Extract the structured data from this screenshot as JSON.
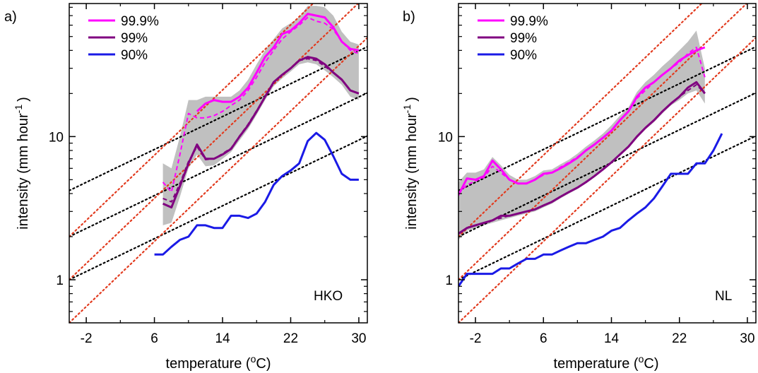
{
  "chart_data": [
    {
      "type": "line",
      "panel_label": "a)",
      "station": "HKO",
      "xlabel": "temperature (",
      "xlabel_sup": "o",
      "xlabel_end": "C)",
      "ylabel": "intensity (mm hour",
      "ylabel_sup": "-1",
      "ylabel_end": ")",
      "xlim": [
        -4,
        31
      ],
      "ylim": [
        0.5,
        85
      ],
      "y_scale": "log",
      "xticks": [
        -2,
        6,
        14,
        22,
        30
      ],
      "xtick_labels": [
        "-2",
        "6",
        "14",
        "22",
        "30"
      ],
      "yticks": [
        1,
        10
      ],
      "ytick_labels": [
        "1",
        "10"
      ],
      "legend": [
        "99.9%",
        "99%",
        "90%"
      ],
      "legend_position": "top-left",
      "series": [
        {
          "name": "99.9%",
          "color": "#ff00ff",
          "x": [
            11,
            12,
            13,
            14,
            15,
            16,
            17,
            18,
            19,
            20,
            21,
            22,
            23,
            24,
            25,
            26,
            27,
            28,
            29,
            30
          ],
          "y": [
            15,
            17,
            18,
            17.5,
            17.5,
            19,
            22,
            28,
            36,
            42,
            52,
            55,
            62,
            72,
            70,
            68,
            58,
            46,
            41,
            40
          ]
        },
        {
          "name": "99% ",
          "color": "#800080",
          "x": [
            7,
            8,
            9,
            10,
            11,
            12,
            13,
            14,
            15,
            16,
            17,
            18,
            19,
            20,
            21,
            22,
            23,
            24,
            25,
            26,
            27,
            28,
            29,
            30
          ],
          "y": [
            3.4,
            3.2,
            4.5,
            6.5,
            8.8,
            7,
            7,
            7.5,
            8.2,
            10,
            12,
            15,
            19,
            24,
            27,
            30,
            34,
            36,
            35,
            32,
            28,
            25,
            21,
            20
          ]
        },
        {
          "name": "90% ",
          "color": "#1a1ae6",
          "x": [
            6,
            7,
            8,
            9,
            10,
            11,
            12,
            13,
            14,
            15,
            16,
            17,
            18,
            19,
            20,
            21,
            22,
            23,
            24,
            25,
            26,
            27,
            28,
            29,
            30
          ],
          "y": [
            1.5,
            1.5,
            1.7,
            1.9,
            2.0,
            2.4,
            2.4,
            2.3,
            2.3,
            2.8,
            2.8,
            2.7,
            2.9,
            3.5,
            4.6,
            5.3,
            5.8,
            6.5,
            9.3,
            10.6,
            9.5,
            7.3,
            5.5,
            5.0,
            5.0
          ]
        },
        {
          "name": "99.9% dashed",
          "color": "#ff00ff",
          "x": [
            7,
            8,
            9,
            10,
            11,
            12,
            13,
            14,
            15,
            16,
            17,
            18,
            19,
            20,
            21,
            22,
            23,
            24,
            25,
            26,
            27,
            28,
            29,
            30
          ],
          "y": [
            4.8,
            4.1,
            7.5,
            14.5,
            13.5,
            13.5,
            14,
            15,
            16.5,
            18,
            21,
            26,
            33,
            40,
            48,
            54,
            60,
            68,
            64,
            62,
            56,
            46,
            40,
            38
          ]
        },
        {
          "name": "99% dashed",
          "color": "#800080",
          "x": [
            7,
            8,
            9,
            10,
            11,
            12,
            13,
            14,
            15,
            16,
            17,
            18,
            19,
            20,
            21,
            22,
            23,
            24,
            25,
            26,
            27,
            28,
            29,
            30
          ],
          "y": [
            3.7,
            3.5,
            4.7,
            6.7,
            8.5,
            6.9,
            7.0,
            7.6,
            8.3,
            10.1,
            12.2,
            15.2,
            19,
            24,
            27,
            30,
            34,
            35,
            34,
            31,
            28,
            25,
            21,
            20
          ]
        }
      ],
      "shade_upper": {
        "x": [
          7,
          8,
          9,
          10,
          11,
          12,
          13,
          14,
          15,
          16,
          17,
          18,
          19,
          20,
          21,
          22,
          23,
          24,
          25,
          26,
          27,
          28,
          29,
          30
        ],
        "y": [
          6.5,
          6,
          10,
          18,
          18,
          19,
          19,
          19,
          19,
          21,
          25,
          32,
          40,
          48,
          57,
          62,
          68,
          82,
          82,
          80,
          70,
          54,
          46,
          44
        ]
      },
      "shade_lower": {
        "x": [
          7,
          8,
          9,
          10,
          11,
          12,
          13,
          14,
          15,
          16,
          17,
          18,
          19,
          20,
          21,
          22,
          23,
          24,
          25,
          26,
          27,
          28,
          29,
          30
        ],
        "y": [
          2.4,
          2.5,
          3.8,
          6,
          7.5,
          6.2,
          6.3,
          7,
          7.8,
          9.4,
          11.3,
          14.2,
          18,
          22.5,
          25.5,
          28.5,
          32,
          33,
          32,
          29,
          26,
          23,
          19,
          18
        ]
      },
      "ref_lines": [
        {
          "kind": "black",
          "y0": 4.2,
          "slope": 0.0287
        },
        {
          "kind": "black",
          "y0": 2.0,
          "slope": 0.0287
        },
        {
          "kind": "black",
          "y0": 1.0,
          "slope": 0.0287
        },
        {
          "kind": "red",
          "y0": 2.0,
          "slope": 0.0569
        },
        {
          "kind": "red",
          "y0": 1.0,
          "slope": 0.0569
        },
        {
          "kind": "red",
          "y0": 0.5,
          "slope": 0.0569
        }
      ],
      "colors": {
        "black_ref": "#000000",
        "red_ref": "#e23b1f",
        "shade": "#c0c0c0"
      }
    },
    {
      "type": "line",
      "panel_label": "b)",
      "station": "NL",
      "xlabel": "temperature (",
      "xlabel_sup": "o",
      "xlabel_end": "C)",
      "ylabel": "intensity (mm hour",
      "ylabel_sup": "-1",
      "ylabel_end": ")",
      "xlim": [
        -4,
        31
      ],
      "ylim": [
        0.5,
        85
      ],
      "y_scale": "log",
      "xticks": [
        -2,
        6,
        14,
        22,
        30
      ],
      "xtick_labels": [
        "-2",
        "6",
        "14",
        "22",
        "30"
      ],
      "yticks": [
        1,
        10
      ],
      "ytick_labels": [
        "1",
        "10"
      ],
      "legend": [
        "99.9%",
        "99%",
        "90%"
      ],
      "legend_position": "top-left",
      "series": [
        {
          "name": "99.9%",
          "color": "#ff00ff",
          "x": [
            -4,
            -3,
            -2,
            -1,
            0,
            1,
            2,
            3,
            4,
            5,
            6,
            7,
            8,
            9,
            10,
            11,
            12,
            13,
            14,
            15,
            16,
            17,
            18,
            19,
            20,
            21,
            22,
            23,
            24,
            25
          ],
          "y": [
            3.9,
            5.1,
            5.0,
            5.3,
            6.8,
            5.9,
            5.0,
            4.7,
            4.7,
            5.0,
            5.5,
            5.6,
            6.0,
            6.5,
            7.1,
            8.0,
            8.8,
            9.8,
            11,
            13,
            15,
            19,
            22,
            24,
            27,
            30,
            34,
            37,
            40,
            42
          ]
        },
        {
          "name": "99% ",
          "color": "#800080",
          "x": [
            -4,
            -3,
            -2,
            -1,
            0,
            1,
            2,
            3,
            4,
            5,
            6,
            7,
            8,
            9,
            10,
            11,
            12,
            13,
            14,
            15,
            16,
            17,
            18,
            19,
            20,
            21,
            22,
            23,
            24,
            25
          ],
          "y": [
            2.1,
            2.3,
            2.4,
            2.5,
            2.6,
            2.8,
            2.8,
            2.9,
            3.0,
            3.1,
            3.3,
            3.5,
            3.8,
            4.1,
            4.4,
            4.8,
            5.3,
            5.9,
            6.6,
            7.5,
            8.5,
            10,
            11.5,
            13,
            15,
            17,
            19,
            22,
            24,
            20
          ]
        },
        {
          "name": "90% ",
          "color": "#1a1ae6",
          "x": [
            -4,
            -3,
            -2,
            -1,
            0,
            1,
            2,
            3,
            4,
            5,
            6,
            7,
            8,
            9,
            10,
            11,
            12,
            13,
            14,
            15,
            16,
            17,
            18,
            19,
            20,
            21,
            22,
            23,
            24,
            25,
            26,
            27
          ],
          "y": [
            0.9,
            1.1,
            1.1,
            1.1,
            1.1,
            1.2,
            1.2,
            1.3,
            1.4,
            1.4,
            1.5,
            1.5,
            1.6,
            1.7,
            1.8,
            1.8,
            1.9,
            2.0,
            2.2,
            2.3,
            2.6,
            2.9,
            3.2,
            3.7,
            4.5,
            5.5,
            5.5,
            5.5,
            6.5,
            6.5,
            8.0,
            10.5
          ]
        },
        {
          "name": "99.9% dashed",
          "color": "#ff00ff",
          "x": [
            -4,
            -3,
            -2,
            -1,
            0,
            1,
            2,
            3,
            4,
            5,
            6,
            7,
            8,
            9,
            10,
            11,
            12,
            13,
            14,
            15,
            16,
            17,
            18,
            19,
            20,
            21,
            22,
            23,
            24,
            25
          ],
          "y": [
            4.0,
            4.6,
            4.9,
            5.2,
            6.2,
            5.6,
            5.0,
            4.7,
            4.7,
            5.0,
            5.4,
            5.6,
            6.1,
            6.6,
            7.2,
            8.0,
            8.8,
            9.8,
            11,
            13,
            15,
            18.5,
            21,
            24,
            27,
            30,
            33,
            38,
            42,
            26
          ]
        },
        {
          "name": "99% dashed",
          "color": "#800080",
          "x": [
            -4,
            -3,
            -2,
            -1,
            0,
            1,
            2,
            3,
            4,
            5,
            6,
            7,
            8,
            9,
            10,
            11,
            12,
            13,
            14,
            15,
            16,
            17,
            18,
            19,
            20,
            21,
            22,
            23,
            24,
            25
          ],
          "y": [
            2.1,
            2.3,
            2.4,
            2.5,
            2.6,
            2.7,
            2.8,
            2.9,
            3.0,
            3.1,
            3.3,
            3.5,
            3.8,
            4.1,
            4.4,
            4.8,
            5.3,
            5.9,
            6.6,
            7.5,
            8.5,
            10,
            11.5,
            13,
            15,
            17,
            19,
            21,
            23,
            20
          ]
        }
      ],
      "shade_upper": {
        "x": [
          -4,
          -3,
          -2,
          -1,
          0,
          1,
          2,
          3,
          4,
          5,
          6,
          7,
          8,
          9,
          10,
          11,
          12,
          13,
          14,
          15,
          16,
          17,
          18,
          19,
          20,
          21,
          22,
          23,
          24,
          25
        ],
        "y": [
          4.8,
          5.6,
          5.6,
          5.9,
          7.2,
          6.3,
          5.4,
          5.0,
          5.0,
          5.3,
          5.8,
          5.9,
          6.4,
          6.9,
          7.6,
          8.5,
          9.4,
          10.5,
          12,
          14,
          16,
          20.5,
          24,
          27,
          31,
          35,
          40,
          46,
          55,
          30
        ]
      },
      "shade_lower": {
        "x": [
          -4,
          -3,
          -2,
          -1,
          0,
          1,
          2,
          3,
          4,
          5,
          6,
          7,
          8,
          9,
          10,
          11,
          12,
          13,
          14,
          15,
          16,
          17,
          18,
          19,
          20,
          21,
          22,
          23,
          24,
          25
        ],
        "y": [
          1.9,
          2.2,
          2.3,
          2.4,
          2.5,
          2.6,
          2.7,
          2.8,
          2.9,
          3.0,
          3.2,
          3.4,
          3.7,
          4.0,
          4.3,
          4.7,
          5.2,
          5.8,
          6.5,
          7.3,
          8.3,
          9.7,
          11.2,
          12.6,
          14.5,
          16.5,
          18,
          20,
          21,
          17
        ]
      },
      "ref_lines": [
        {
          "kind": "black",
          "y0": 4.2,
          "slope": 0.0287
        },
        {
          "kind": "black",
          "y0": 2.0,
          "slope": 0.0287
        },
        {
          "kind": "black",
          "y0": 1.0,
          "slope": 0.0287
        },
        {
          "kind": "red",
          "y0": 2.0,
          "slope": 0.0569
        },
        {
          "kind": "red",
          "y0": 1.0,
          "slope": 0.0569
        },
        {
          "kind": "red",
          "y0": 0.5,
          "slope": 0.0569
        }
      ],
      "colors": {
        "black_ref": "#000000",
        "red_ref": "#e23b1f",
        "shade": "#c0c0c0"
      }
    }
  ]
}
